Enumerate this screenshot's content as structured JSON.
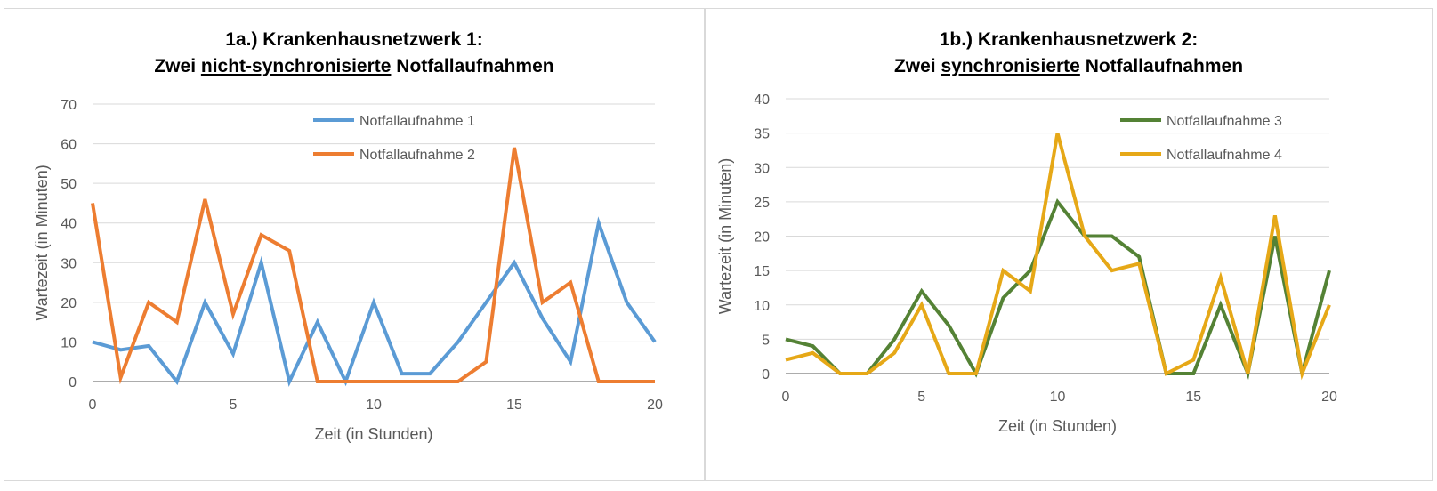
{
  "colors": {
    "notfall1": "#5b9bd5",
    "notfall2": "#ed7d31",
    "notfall3": "#548235",
    "notfall4": "#e6a817",
    "grid": "#d9d9d9",
    "axis": "#595959"
  },
  "chart_data": [
    {
      "type": "line",
      "title": {
        "line1": "1a.) Krankenhausnetzwerk 1:",
        "line2_pre": "Zwei ",
        "line2_underlined": "nicht-synchronisierte",
        "line2_post": " Notfallaufnahmen"
      },
      "xlabel": "Zeit (in Stunden)",
      "ylabel": "Wartezeit (in Minuten)",
      "xlim": [
        0,
        20
      ],
      "ylim": [
        0,
        70
      ],
      "xticks": [
        0,
        5,
        10,
        15,
        20
      ],
      "yticks": [
        0,
        10,
        20,
        30,
        40,
        50,
        60,
        70
      ],
      "grid": true,
      "legend_position": "top-right",
      "x": [
        0,
        1,
        2,
        3,
        4,
        5,
        6,
        7,
        8,
        9,
        10,
        11,
        12,
        13,
        14,
        15,
        16,
        17,
        18,
        19,
        20
      ],
      "series": [
        {
          "name": "Notfallaufnahme 1",
          "color": "#5b9bd5",
          "values": [
            10,
            8,
            9,
            0,
            20,
            7,
            30,
            0,
            15,
            0,
            20,
            2,
            2,
            10,
            20,
            30,
            16,
            5,
            40,
            20,
            10
          ]
        },
        {
          "name": "Notfallaufnahme 2",
          "color": "#ed7d31",
          "values": [
            45,
            1,
            20,
            15,
            46,
            17,
            37,
            33,
            0,
            0,
            0,
            0,
            0,
            0,
            5,
            59,
            20,
            25,
            0,
            0,
            0
          ]
        }
      ]
    },
    {
      "type": "line",
      "title": {
        "line1": "1b.) Krankenhausnetzwerk 2:",
        "line2_pre": "Zwei ",
        "line2_underlined": "synchronisierte",
        "line2_post": " Notfallaufnahmen"
      },
      "xlabel": "Zeit (in Stunden)",
      "ylabel": "Wartezeit (in Minuten)",
      "xlim": [
        0,
        20
      ],
      "ylim": [
        0,
        40
      ],
      "xticks": [
        0,
        5,
        10,
        15,
        20
      ],
      "yticks": [
        0,
        5,
        10,
        15,
        20,
        25,
        30,
        35,
        40
      ],
      "grid": true,
      "legend_position": "top-right",
      "x": [
        0,
        1,
        2,
        3,
        4,
        5,
        6,
        7,
        8,
        9,
        10,
        11,
        12,
        13,
        14,
        15,
        16,
        17,
        18,
        19,
        20
      ],
      "series": [
        {
          "name": "Notfallaufnahme 3",
          "color": "#548235",
          "values": [
            5,
            4,
            0,
            0,
            5,
            12,
            7,
            0,
            11,
            15,
            25,
            20,
            20,
            17,
            0,
            0,
            10,
            0,
            20,
            0,
            15
          ]
        },
        {
          "name": "Notfallaufnahme 4",
          "color": "#e6a817",
          "values": [
            2,
            3,
            0,
            0,
            3,
            10,
            0,
            0,
            15,
            12,
            35,
            20,
            15,
            16,
            0,
            2,
            14,
            0,
            23,
            0,
            10
          ]
        }
      ]
    }
  ]
}
